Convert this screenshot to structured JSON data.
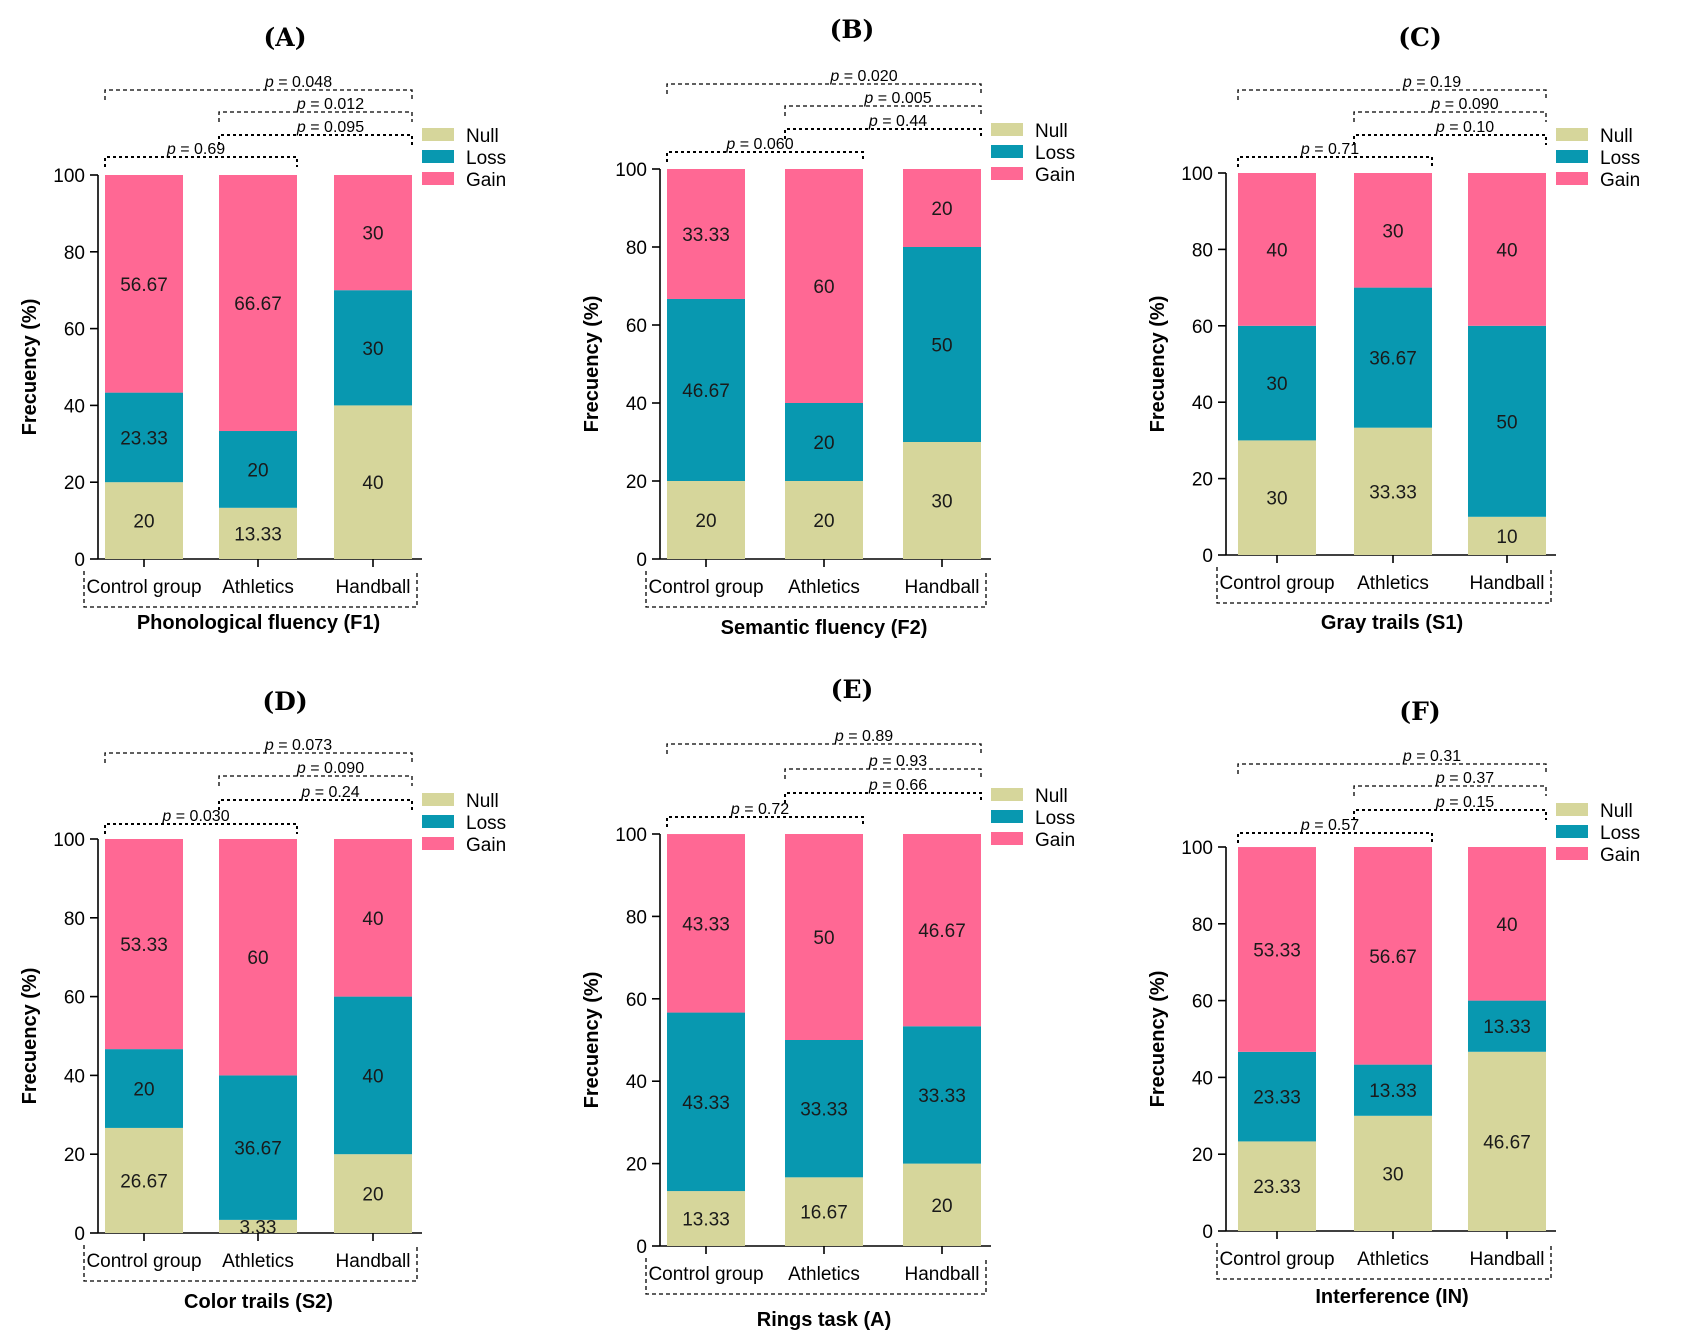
{
  "figure": {
    "series_names": [
      "Null",
      "Loss",
      "Gain"
    ],
    "colors": {
      "Null": "#d6d69b",
      "Loss": "#0898b0",
      "Gain": "#ff6894"
    },
    "legend_labels": [
      "Null",
      "Loss",
      "Gain"
    ]
  },
  "chart_data": [
    {
      "panel": "(A)",
      "type": "bar",
      "stacked": true,
      "title": "(A)",
      "xlabel": "Phonological fluency (F1)",
      "ylabel": "Frecuency (%)",
      "ylim": [
        0,
        100
      ],
      "yticks": [
        "0",
        "20",
        "40",
        "60",
        "80",
        "100"
      ],
      "categories": [
        "Control group",
        "Athletics",
        "Handball"
      ],
      "series": [
        {
          "name": "Null",
          "values": [
            20,
            13.33,
            40
          ],
          "labels": [
            "20",
            "13.33",
            "40"
          ]
        },
        {
          "name": "Loss",
          "values": [
            23.33,
            20,
            30
          ],
          "labels": [
            "23.33",
            "20",
            "30"
          ]
        },
        {
          "name": "Gain",
          "values": [
            56.67,
            66.67,
            30
          ],
          "labels": [
            "56.67",
            "66.67",
            "30"
          ]
        }
      ],
      "p_values": [
        "0.048",
        "0.012",
        "0.095",
        "0.69"
      ]
    },
    {
      "panel": "(B)",
      "type": "bar",
      "stacked": true,
      "title": "(B)",
      "xlabel": "Semantic fluency (F2)",
      "ylabel": "Frecuency (%)",
      "ylim": [
        0,
        100
      ],
      "yticks": [
        "0",
        "20",
        "40",
        "60",
        "80",
        "100"
      ],
      "categories": [
        "Control group",
        "Athletics",
        "Handball"
      ],
      "series": [
        {
          "name": "Null",
          "values": [
            20,
            20,
            30
          ],
          "labels": [
            "20",
            "20",
            "30"
          ]
        },
        {
          "name": "Loss",
          "values": [
            46.67,
            20,
            50
          ],
          "labels": [
            "46.67",
            "20",
            "50"
          ]
        },
        {
          "name": "Gain",
          "values": [
            33.33,
            60,
            20
          ],
          "labels": [
            "33.33",
            "60",
            "20"
          ]
        }
      ],
      "p_values": [
        "0.020",
        "0.005",
        "0.44",
        "0.060"
      ]
    },
    {
      "panel": "(C)",
      "type": "bar",
      "stacked": true,
      "title": "(C)",
      "xlabel": "Gray trails (S1)",
      "ylabel": "Frecuency (%)",
      "ylim": [
        0,
        100
      ],
      "yticks": [
        "0",
        "20",
        "40",
        "60",
        "80",
        "100"
      ],
      "categories": [
        "Control group",
        "Athletics",
        "Handball"
      ],
      "series": [
        {
          "name": "Null",
          "values": [
            30,
            33.33,
            10
          ],
          "labels": [
            "30",
            "33.33",
            "10"
          ]
        },
        {
          "name": "Loss",
          "values": [
            30,
            36.67,
            50
          ],
          "labels": [
            "30",
            "36.67",
            "50"
          ]
        },
        {
          "name": "Gain",
          "values": [
            40,
            30,
            40
          ],
          "labels": [
            "40",
            "30",
            "40"
          ]
        }
      ],
      "p_values": [
        "0.19",
        "0.090",
        "0.10",
        "0.71"
      ]
    },
    {
      "panel": "(D)",
      "type": "bar",
      "stacked": true,
      "title": "(D)",
      "xlabel": "Color trails (S2)",
      "ylabel": "Frecuency (%)",
      "ylim": [
        0,
        100
      ],
      "yticks": [
        "0",
        "20",
        "40",
        "60",
        "80",
        "100"
      ],
      "categories": [
        "Control group",
        "Athletics",
        "Handball"
      ],
      "series": [
        {
          "name": "Null",
          "values": [
            26.67,
            3.33,
            20
          ],
          "labels": [
            "26.67",
            "3.33",
            "20"
          ]
        },
        {
          "name": "Loss",
          "values": [
            20,
            36.67,
            40
          ],
          "labels": [
            "20",
            "36.67",
            "40"
          ]
        },
        {
          "name": "Gain",
          "values": [
            53.33,
            60,
            40
          ],
          "labels": [
            "53.33",
            "60",
            "40"
          ]
        }
      ],
      "p_values": [
        "0.073",
        "0.090",
        "0.24",
        "0.030"
      ]
    },
    {
      "panel": "(E)",
      "type": "bar",
      "stacked": true,
      "title": "(E)",
      "xlabel": "Rings task (A)",
      "ylabel": "Frecuency (%)",
      "ylim": [
        0,
        100
      ],
      "yticks": [
        "0",
        "20",
        "40",
        "60",
        "80",
        "100"
      ],
      "categories": [
        "Control group",
        "Athletics",
        "Handball"
      ],
      "series": [
        {
          "name": "Null",
          "values": [
            13.33,
            16.67,
            20
          ],
          "labels": [
            "13.33",
            "16.67",
            "20"
          ]
        },
        {
          "name": "Loss",
          "values": [
            43.33,
            33.33,
            33.33
          ],
          "labels": [
            "43.33",
            "33.33",
            "33.33"
          ]
        },
        {
          "name": "Gain",
          "values": [
            43.33,
            50,
            46.67
          ],
          "labels": [
            "43.33",
            "50",
            "46.67"
          ]
        }
      ],
      "p_values": [
        "0.89",
        "0.93",
        "0.66",
        "0.72"
      ]
    },
    {
      "panel": "(F)",
      "type": "bar",
      "stacked": true,
      "title": "(F)",
      "xlabel": "Interference (IN)",
      "ylabel": "Frecuency (%)",
      "ylim": [
        0,
        100
      ],
      "yticks": [
        "0",
        "20",
        "40",
        "60",
        "80",
        "100"
      ],
      "categories": [
        "Control group",
        "Athletics",
        "Handball"
      ],
      "series": [
        {
          "name": "Null",
          "values": [
            23.33,
            30,
            46.67
          ],
          "labels": [
            "23.33",
            "30",
            "46.67"
          ]
        },
        {
          "name": "Loss",
          "values": [
            23.33,
            13.33,
            13.33
          ],
          "labels": [
            "23.33",
            "13.33",
            "13.33"
          ]
        },
        {
          "name": "Gain",
          "values": [
            53.33,
            56.67,
            40
          ],
          "labels": [
            "53.33",
            "56.67",
            "40"
          ]
        }
      ],
      "p_values": [
        "0.31",
        "0.37",
        "0.15",
        "0.57"
      ]
    }
  ]
}
